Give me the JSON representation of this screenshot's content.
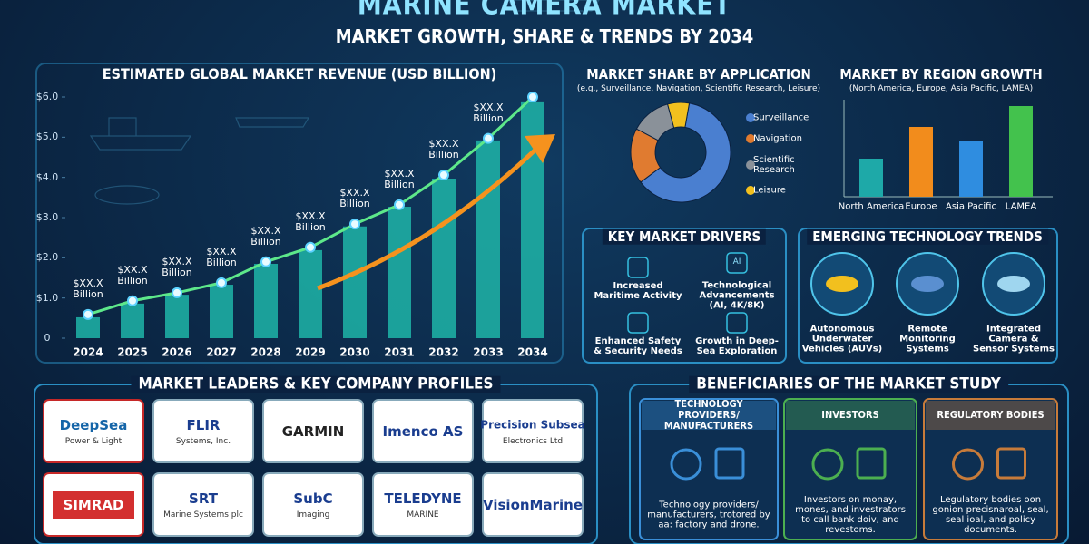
{
  "header": {
    "title": "MARINE CAMERA MARKET",
    "subtitle": "MARKET GROWTH, SHARE & TRENDS BY 2034"
  },
  "chart_data": [
    {
      "type": "bar",
      "title": "ESTIMATED GLOBAL MARKET REVENUE (USD BILLION)",
      "categories": [
        "2024",
        "2025",
        "2026",
        "2027",
        "2028",
        "2029",
        "2030",
        "2031",
        "2032",
        "2033",
        "2034"
      ],
      "series": [
        {
          "type": "bar",
          "color": "#1fb5a8",
          "values": [
            0.52,
            0.86,
            1.08,
            1.33,
            1.85,
            2.19,
            2.78,
            3.27,
            3.97,
            4.92,
            5.89
          ]
        },
        {
          "type": "line",
          "color": "#5de88a",
          "values": [
            0.59,
            0.93,
            1.13,
            1.38,
            1.9,
            2.26,
            2.84,
            3.32,
            4.06,
            4.97,
            6.0
          ]
        }
      ],
      "annotations": [
        "$XX.X Billion",
        "$XX.X Billion",
        "$XX.X Billion",
        "$XX.X Billion",
        "$XX.X Billion",
        "$XX.X Billion",
        "$XX.X Billion",
        "$XX.X Billion",
        "$XX.X Billion",
        "$XX.X Billion"
      ],
      "ylim": [
        0,
        6
      ],
      "yticks": [
        {
          "value": 0,
          "label": "0"
        },
        {
          "value": 1,
          "label": "$1.0"
        },
        {
          "value": 2,
          "label": "$2.0"
        },
        {
          "value": 3,
          "label": "$3.0"
        },
        {
          "value": 4,
          "label": "$4.0"
        },
        {
          "value": 5,
          "label": "$5.0"
        },
        {
          "value": 6,
          "label": "$6.0"
        }
      ]
    },
    {
      "type": "pie",
      "title": "MARKET SHARE BY APPLICATION",
      "subtitle": "(e.g., Surveillance, Navigation, Scientific Research, Leisure)",
      "categories": [
        "Surveillance",
        "Navigation",
        "Scientific Research",
        "Leisure"
      ],
      "values": [
        62,
        18,
        13,
        7
      ],
      "colors": [
        "#4a7fd0",
        "#e07b30",
        "#8a9199",
        "#f2c01e"
      ]
    },
    {
      "type": "bar",
      "title": "MARKET BY REGION GROWTH",
      "subtitle": "(North America, Europe, Asia Pacific, LAMEA)",
      "categories": [
        "North America",
        "Europe",
        "Asia Pacific",
        "LAMEA"
      ],
      "values": [
        42,
        77,
        61,
        100
      ],
      "colors": [
        "#1ea9a8",
        "#f28c1c",
        "#2f8de0",
        "#43c24d"
      ],
      "ylim": [
        0,
        110
      ]
    }
  ],
  "drivers": {
    "title": "KEY MARKET DRIVERS",
    "items": [
      "Increased Maritime Activity",
      "Technological Advancements (AI, 4K/8K)",
      "Enhanced Safety & Security Needs",
      "Growth in Deep-Sea Exploration"
    ],
    "icon_label": "AI"
  },
  "trends": {
    "title": "EMERGING TECHNOLOGY TRENDS",
    "items": [
      "Autonomous Underwater Vehicles (AUVs)",
      "Remote Monitoring Systems",
      "Integrated Camera & Sensor Systems"
    ]
  },
  "leaders": {
    "title": "MARKET LEADERS & KEY COMPANY PROFILES",
    "companies": [
      {
        "name": "DeepSea",
        "tagline": "Power & Light"
      },
      {
        "name": "FLIR",
        "tagline": "Systems, Inc."
      },
      {
        "name": "GARMIN"
      },
      {
        "name": "Imenco AS"
      },
      {
        "name": "Precision Subsea",
        "tagline": "Electronics Ltd"
      },
      {
        "name": "SIMRAD"
      },
      {
        "name": "SRT",
        "tagline": "Marine Systems plc"
      },
      {
        "name": "SubC",
        "tagline": "Imaging"
      },
      {
        "name": "TELEDYNE",
        "tagline": "MARINE"
      },
      {
        "name": "VisionMarine"
      }
    ]
  },
  "beneficiaries": {
    "title": "BENEFICIARIES OF THE MARKET STUDY",
    "cards": [
      {
        "heading": "TECHNOLOGY PROVIDERS/ MANUFACTURERS",
        "text": "Technology providers/ manufacturers, trotored by aa: factory and drone."
      },
      {
        "heading": "INVESTORS",
        "text": "Investors on monay, mones, and investrators to call bank doiv, and revestoms."
      },
      {
        "heading": "REGULATORY BODIES",
        "text": "Legulatory bodies oon gonion precisnaroal, seal, seal ioal, and policy documents."
      }
    ]
  }
}
